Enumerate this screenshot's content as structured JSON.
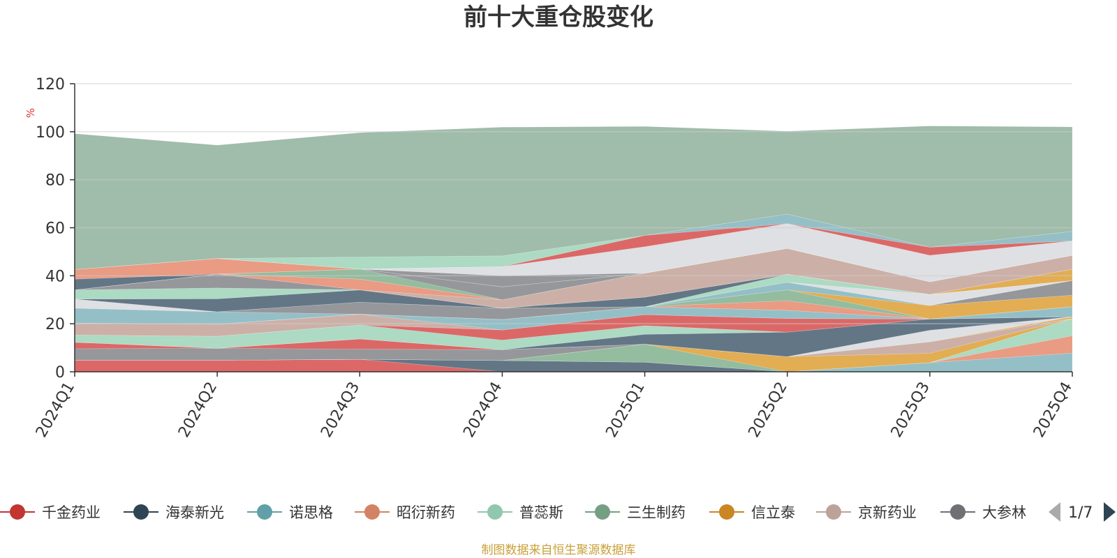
{
  "chart_data": {
    "type": "area",
    "stacked": true,
    "title": "前十大重仓股变化",
    "ylabel": "%",
    "ylim": [
      0,
      120
    ],
    "yticks": [
      0,
      20,
      40,
      60,
      80,
      100,
      120
    ],
    "categories": [
      "2024Q1",
      "2024Q2",
      "2024Q3",
      "2024Q4",
      "2025Q1",
      "2025Q2",
      "2025Q3",
      "2025Q4"
    ],
    "series": [
      {
        "name": "千金药业",
        "color": "#d9605f",
        "values": [
          4.8,
          4.8,
          5.2,
          0.0,
          0.0,
          0.0,
          0.0,
          0.0
        ]
      },
      {
        "name": "海泰新光",
        "color": "#5b6f80",
        "values": [
          0.0,
          0.0,
          0.0,
          4.7,
          4.0,
          0.0,
          0.0,
          0.0
        ]
      },
      {
        "name": "诺思格",
        "color": "#8fbcc4",
        "values": [
          0.0,
          0.0,
          0.0,
          0.0,
          0.0,
          0.0,
          3.8,
          7.8
        ]
      },
      {
        "name": "昭衍新药",
        "color": "#e8967c",
        "values": [
          0.0,
          0.0,
          0.0,
          0.0,
          0.0,
          0.0,
          0.0,
          7.2
        ]
      },
      {
        "name": "普蕊斯",
        "color": "#a8d8c0",
        "values": [
          0.0,
          0.0,
          0.0,
          0.0,
          0.0,
          0.0,
          0.0,
          7.2
        ]
      },
      {
        "name": "三生制药",
        "color": "#8eb89a",
        "values": [
          0.0,
          0.0,
          0.0,
          0.0,
          7.5,
          0.0,
          0.0,
          0.0
        ]
      },
      {
        "name": "信立泰",
        "color": "#e0a94a",
        "values": [
          0.0,
          0.0,
          0.0,
          0.0,
          0.0,
          6.3,
          3.9,
          0.0
        ]
      },
      {
        "name": "京新药业",
        "color": "#c9aca2",
        "values": [
          0.0,
          0.0,
          0.0,
          0.0,
          0.0,
          0.0,
          4.8,
          0.0
        ]
      },
      {
        "name": "大参林",
        "color": "#8f9196",
        "values": [
          4.8,
          5.0,
          4.2,
          4.5,
          0.0,
          0.0,
          0.0,
          0.0
        ]
      },
      {
        "name": "",
        "color": "#d9605f",
        "values": [
          2.7,
          0.0,
          4.3,
          0.0,
          0.0,
          0.0,
          0.0,
          0.0
        ]
      },
      {
        "name": "",
        "color": "#e0a94a",
        "values": [
          0.0,
          0.0,
          0.0,
          0.0,
          0.0,
          0.0,
          0.0,
          0.7
        ]
      },
      {
        "name": "",
        "color": "#dcdee2",
        "values": [
          0.0,
          0.0,
          0.0,
          0.0,
          0.0,
          0.0,
          4.8,
          0.0
        ]
      },
      {
        "name": "",
        "color": "#5b6f80",
        "values": [
          0.0,
          0.0,
          0.0,
          0.0,
          4.1,
          10.2,
          4.7,
          0.0
        ]
      },
      {
        "name": "",
        "color": "#a8d8c0",
        "values": [
          3.0,
          5.0,
          5.8,
          4.0,
          3.6,
          0.0,
          0.0,
          0.0
        ]
      },
      {
        "name": "",
        "color": "#d9605f",
        "values": [
          0.0,
          0.0,
          0.0,
          4.2,
          4.6,
          5.7,
          0.0,
          0.0
        ]
      },
      {
        "name": "",
        "color": "#c9aca2",
        "values": [
          5.0,
          5.0,
          4.5,
          0.0,
          0.0,
          0.0,
          0.0,
          0.0
        ]
      },
      {
        "name": "",
        "color": "#8fbcc4",
        "values": [
          0.0,
          0.0,
          0.0,
          4.4,
          3.3,
          3.4,
          0.0,
          4.2
        ]
      },
      {
        "name": "",
        "color": "#e8967c",
        "values": [
          0.0,
          0.0,
          0.0,
          0.0,
          0.0,
          4.0,
          0.0,
          0.0
        ]
      },
      {
        "name": "",
        "color": "#8eb89a",
        "values": [
          0.0,
          0.0,
          0.0,
          0.0,
          0.0,
          4.5,
          0.0,
          0.0
        ]
      },
      {
        "name": "",
        "color": "#e0a94a",
        "values": [
          0.0,
          0.0,
          0.0,
          0.0,
          0.0,
          0.0,
          5.6,
          4.8
        ]
      },
      {
        "name": "",
        "color": "#8fbcc4",
        "values": [
          6.2,
          5.2,
          0.0,
          0.0,
          0.0,
          3.2,
          0.0,
          0.0
        ]
      },
      {
        "name": "",
        "color": "#8f9196",
        "values": [
          0.0,
          0.0,
          5.0,
          4.7,
          0.0,
          0.0,
          0.0,
          6.1
        ]
      },
      {
        "name": "",
        "color": "#dcdee2",
        "values": [
          3.8,
          0.0,
          0.0,
          0.0,
          0.0,
          0.0,
          4.6,
          0.0
        ]
      },
      {
        "name": "",
        "color": "#a8d8c0",
        "values": [
          0.0,
          0.0,
          0.0,
          0.0,
          0.0,
          3.3,
          0.0,
          0.0
        ]
      },
      {
        "name": "",
        "color": "#5b6f80",
        "values": [
          0.0,
          5.4,
          5.1,
          0.0,
          4.0,
          0.0,
          0.0,
          0.0
        ]
      },
      {
        "name": "",
        "color": "#e0a94a",
        "values": [
          0.0,
          0.0,
          0.0,
          0.0,
          0.0,
          0.0,
          0.0,
          4.7
        ]
      },
      {
        "name": "",
        "color": "#a8d8c0",
        "values": [
          3.8,
          4.5,
          0.0,
          0.0,
          0.0,
          0.0,
          0.0,
          0.0
        ]
      },
      {
        "name": "",
        "color": "#8f9196",
        "values": [
          0.0,
          5.8,
          0.0,
          0.0,
          0.0,
          0.0,
          0.0,
          0.0
        ]
      },
      {
        "name": "",
        "color": "#c9aca2",
        "values": [
          0.0,
          0.0,
          0.0,
          3.5,
          10.0,
          10.8,
          5.3,
          5.8
        ]
      },
      {
        "name": "",
        "color": "#e8967c",
        "values": [
          0.0,
          0.0,
          4.5,
          0.0,
          0.0,
          0.0,
          0.0,
          0.0
        ]
      },
      {
        "name": "",
        "color": "#8eb89a",
        "values": [
          0.0,
          0.0,
          4.2,
          0.0,
          0.0,
          0.0,
          0.0,
          0.0
        ]
      },
      {
        "name": "",
        "color": "#8f9196",
        "values": [
          0.0,
          0.0,
          0.0,
          5.4,
          0.0,
          0.0,
          0.0,
          0.0
        ]
      },
      {
        "name": "",
        "color": "#5b6f80",
        "values": [
          4.5,
          0.0,
          0.0,
          0.0,
          0.0,
          0.0,
          0.0,
          0.0
        ]
      },
      {
        "name": "",
        "color": "#e8967c",
        "values": [
          4.0,
          6.5,
          0.0,
          0.0,
          0.0,
          0.0,
          0.0,
          0.0
        ]
      },
      {
        "name": "",
        "color": "#8f9196",
        "values": [
          0.0,
          0.0,
          0.0,
          4.6,
          0.0,
          0.0,
          0.0,
          0.0
        ]
      },
      {
        "name": "",
        "color": "#dcdee2",
        "values": [
          0.0,
          0.0,
          0.0,
          3.8,
          11.0,
          10.3,
          11.0,
          6.0
        ]
      },
      {
        "name": "",
        "color": "#d9605f",
        "values": [
          0.0,
          0.0,
          0.0,
          0.0,
          4.7,
          0.0,
          3.4,
          0.0
        ]
      },
      {
        "name": "",
        "color": "#8fbcc4",
        "values": [
          0.0,
          0.0,
          0.0,
          0.0,
          0.0,
          4.0,
          0.0,
          4.0
        ]
      },
      {
        "name": "",
        "color": "#a8d8c0",
        "values": [
          0.0,
          0.0,
          5.0,
          4.5,
          0.0,
          0.0,
          0.0,
          0.0
        ]
      },
      {
        "name": "",
        "color": "#9bb8a5",
        "values": [
          56.6,
          47.2,
          51.8,
          53.6,
          45.4,
          34.5,
          50.5,
          43.5
        ]
      }
    ],
    "legend": {
      "placement": "bottom",
      "items": [
        {
          "name": "千金药业",
          "color": "#c23531"
        },
        {
          "name": "海泰新光",
          "color": "#2f4554"
        },
        {
          "name": "诺思格",
          "color": "#61a0a8"
        },
        {
          "name": "昭衍新药",
          "color": "#d48265"
        },
        {
          "name": "普蕊斯",
          "color": "#91c7ae"
        },
        {
          "name": "三生制药",
          "color": "#749f83"
        },
        {
          "name": "信立泰",
          "color": "#ca8622"
        },
        {
          "name": "京新药业",
          "color": "#bda29a"
        },
        {
          "name": "大参林",
          "color": "#6e7074"
        }
      ],
      "page": "1/7"
    },
    "grid": true
  },
  "footer": {
    "source": "制图数据来自恒生聚源数据库"
  },
  "colors": {
    "unit": "#e03030",
    "source": "#c9a03a",
    "axis": "#333333",
    "grid": "#cccccc",
    "pager_active": "#2f4554",
    "pager_inactive": "#aaaaaa"
  }
}
